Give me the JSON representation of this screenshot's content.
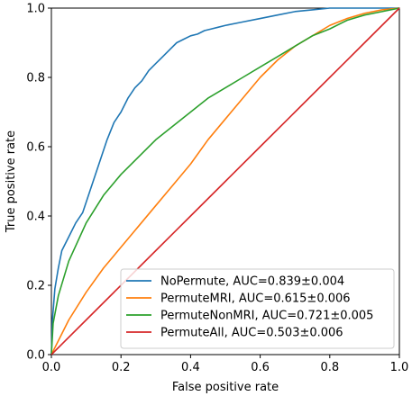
{
  "chart_data": {
    "type": "line",
    "title": "",
    "xlabel": "False positive rate",
    "ylabel": "True positive rate",
    "xlim": [
      0,
      1
    ],
    "ylim": [
      0,
      1
    ],
    "xticks": [
      "0.0",
      "0.2",
      "0.4",
      "0.6",
      "0.8",
      "1.0"
    ],
    "yticks": [
      "0.0",
      "0.2",
      "0.4",
      "0.6",
      "0.8",
      "1.0"
    ],
    "grid": false,
    "legend_position": "lower-right",
    "series": [
      {
        "name": "NoPermute, AUC=0.839±0.004",
        "color": "#1f77b4",
        "x": [
          0,
          0.003,
          0.01,
          0.02,
          0.03,
          0.05,
          0.07,
          0.09,
          0.1,
          0.12,
          0.14,
          0.16,
          0.18,
          0.2,
          0.22,
          0.24,
          0.26,
          0.28,
          0.3,
          0.32,
          0.34,
          0.36,
          0.38,
          0.4,
          0.42,
          0.44,
          0.46,
          0.48,
          0.5,
          0.55,
          0.6,
          0.65,
          0.7,
          0.75,
          0.8,
          0.85,
          0.9,
          0.95,
          1.0
        ],
        "y": [
          0,
          0.1,
          0.19,
          0.25,
          0.3,
          0.34,
          0.38,
          0.41,
          0.44,
          0.5,
          0.56,
          0.62,
          0.67,
          0.7,
          0.74,
          0.77,
          0.79,
          0.82,
          0.84,
          0.86,
          0.88,
          0.9,
          0.91,
          0.92,
          0.925,
          0.935,
          0.94,
          0.945,
          0.95,
          0.96,
          0.97,
          0.98,
          0.99,
          0.995,
          1.0,
          1.0,
          1.0,
          1.0,
          1.0
        ]
      },
      {
        "name": "PermuteMRI, AUC=0.615±0.006",
        "color": "#ff7f0e",
        "x": [
          0,
          0.02,
          0.05,
          0.1,
          0.15,
          0.2,
          0.25,
          0.3,
          0.35,
          0.4,
          0.45,
          0.5,
          0.55,
          0.6,
          0.65,
          0.7,
          0.75,
          0.8,
          0.85,
          0.9,
          0.95,
          1.0
        ],
        "y": [
          0,
          0.04,
          0.1,
          0.18,
          0.25,
          0.31,
          0.37,
          0.43,
          0.49,
          0.55,
          0.62,
          0.68,
          0.74,
          0.8,
          0.85,
          0.89,
          0.92,
          0.95,
          0.97,
          0.985,
          0.995,
          1.0
        ]
      },
      {
        "name": "PermuteNonMRI, AUC=0.721±0.005",
        "color": "#2ca02c",
        "x": [
          0,
          0.005,
          0.02,
          0.05,
          0.1,
          0.15,
          0.2,
          0.25,
          0.3,
          0.35,
          0.4,
          0.45,
          0.5,
          0.55,
          0.6,
          0.65,
          0.7,
          0.75,
          0.8,
          0.85,
          0.9,
          0.95,
          1.0
        ],
        "y": [
          0,
          0.09,
          0.17,
          0.27,
          0.38,
          0.46,
          0.52,
          0.57,
          0.62,
          0.66,
          0.7,
          0.74,
          0.77,
          0.8,
          0.83,
          0.86,
          0.89,
          0.92,
          0.94,
          0.965,
          0.98,
          0.99,
          1.0
        ]
      },
      {
        "name": "PermuteAll, AUC=0.503±0.006",
        "color": "#d62728",
        "x": [
          0,
          0.1,
          0.2,
          0.3,
          0.4,
          0.5,
          0.6,
          0.7,
          0.8,
          0.9,
          1.0
        ],
        "y": [
          0,
          0.1,
          0.2,
          0.3,
          0.4,
          0.5,
          0.6,
          0.7,
          0.8,
          0.9,
          1.0
        ]
      }
    ],
    "reference_line": {
      "x": [
        0,
        1
      ],
      "y": [
        0,
        1
      ],
      "color": "#ff9999",
      "style": "dashed"
    }
  }
}
